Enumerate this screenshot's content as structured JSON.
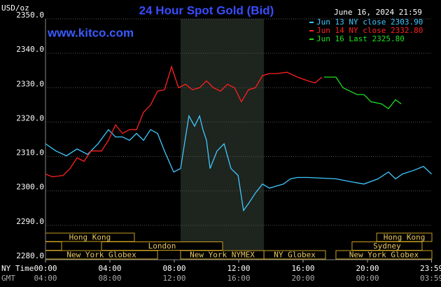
{
  "chart_data": {
    "type": "line",
    "title": "24 Hour Spot Gold (Bid)",
    "unit_label": "USD/oz",
    "site": "www.kitco.com",
    "timestamp": "June 16, 2024 21:59",
    "x_row_labels": [
      "NY Time",
      "GMT"
    ],
    "xlim": [
      0,
      24
    ],
    "xticks": [
      {
        "value": 0,
        "label": "00:00"
      },
      {
        "value": 4,
        "label": "04:00"
      },
      {
        "value": 8,
        "label": "08:00"
      },
      {
        "value": 12,
        "label": "12:00"
      },
      {
        "value": 16,
        "label": "16:00"
      },
      {
        "value": 20,
        "label": "20:00"
      },
      {
        "value": 23.98,
        "label": "23:59"
      }
    ],
    "gmt_tick_labels": [
      "04:00",
      "08:00",
      "12:00",
      "16:00",
      "20:00",
      "00:00",
      "03:59"
    ],
    "ylim": [
      2280,
      2350
    ],
    "yticks": [
      {
        "value": 2280,
        "label": "2280.0"
      },
      {
        "value": 2290,
        "label": "2290.0"
      },
      {
        "value": 2300,
        "label": "2300.0"
      },
      {
        "value": 2310,
        "label": "2310.0"
      },
      {
        "value": 2320,
        "label": "2320.0"
      },
      {
        "value": 2330,
        "label": "2330.0"
      },
      {
        "value": 2340,
        "label": "2340.0"
      },
      {
        "value": 2350,
        "label": "2350.0"
      }
    ],
    "grid": true,
    "series": [
      {
        "name": "Jun 13 NY close 2303.90",
        "color": "#40c8ff",
        "x": [
          0,
          0.65,
          1.3,
          1.96,
          2.61,
          3.26,
          3.91,
          4.35,
          4.78,
          5.22,
          5.65,
          6.09,
          6.52,
          6.96,
          7.39,
          7.96,
          8.39,
          8.7,
          8.91,
          9.26,
          9.57,
          9.78,
          10,
          10.22,
          10.65,
          11.09,
          11.52,
          11.96,
          12.3,
          12.61,
          13.04,
          13.48,
          13.91,
          14.35,
          14.78,
          15.22,
          15.65,
          16.3,
          17.17,
          18.04,
          18.91,
          19.78,
          20.65,
          21.3,
          21.74,
          22.17,
          22.83,
          23.48,
          23.98
        ],
        "values": [
          2313.7,
          2311.6,
          2310.2,
          2312.2,
          2310.6,
          2313.7,
          2317.8,
          2315.7,
          2315.7,
          2314.7,
          2316.7,
          2314.7,
          2317.8,
          2316.7,
          2311.6,
          2305.5,
          2306.5,
          2315.7,
          2321.8,
          2318.8,
          2321.8,
          2317.8,
          2314.7,
          2306.5,
          2311.6,
          2313.7,
          2306.5,
          2304.5,
          2294.3,
          2296.3,
          2299.4,
          2302,
          2300.8,
          2301.4,
          2302,
          2303.5,
          2303.9,
          2303.9,
          2303.7,
          2303.5,
          2302.7,
          2302,
          2303.5,
          2305.5,
          2303.5,
          2304.9,
          2305.9,
          2307.1,
          2304.9
        ]
      },
      {
        "name": "Jun 14 NY close 2332.80",
        "color": "#ff2020",
        "x": [
          0,
          0.43,
          1.09,
          1.52,
          1.96,
          2.39,
          2.83,
          3.48,
          3.91,
          4.35,
          4.78,
          5.22,
          5.65,
          6.09,
          6.52,
          6.96,
          7.39,
          7.83,
          8.26,
          8.7,
          9.13,
          9.57,
          10,
          10.43,
          10.87,
          11.3,
          11.74,
          12.17,
          12.61,
          13.04,
          13.48,
          13.91,
          14.35,
          15,
          15.65,
          16.3,
          16.74,
          17.17
        ],
        "values": [
          2304.9,
          2304.1,
          2304.5,
          2306.5,
          2309.6,
          2308.6,
          2311.6,
          2311.6,
          2314.7,
          2319.2,
          2316.7,
          2317.8,
          2317.8,
          2322.9,
          2324.9,
          2329,
          2329.4,
          2336.1,
          2330,
          2331,
          2329.4,
          2330,
          2332,
          2330,
          2329,
          2331,
          2330,
          2325.9,
          2329.4,
          2330,
          2333.5,
          2334.1,
          2334.1,
          2334.5,
          2333.1,
          2332,
          2331.4,
          2333.1
        ]
      },
      {
        "name": "Jun 16 Last 2325.80",
        "color": "#20e020",
        "x": [
          17.3,
          18.04,
          18.48,
          18.91,
          19.35,
          19.78,
          20.22,
          20.87,
          21.3,
          21.74,
          22.09
        ],
        "values": [
          2333.1,
          2333.1,
          2330,
          2329,
          2328,
          2328,
          2325.9,
          2325.3,
          2323.9,
          2326.5,
          2325.3
        ]
      }
    ],
    "sessions": [
      {
        "label": "Hong Kong",
        "row": 0,
        "start": 0,
        "end": 5.52
      },
      {
        "label": "Hong Kong",
        "row": 0,
        "start": 20.57,
        "end": 24
      },
      {
        "label": null,
        "row": 1,
        "start": 0,
        "end": 1
      },
      {
        "label": "London",
        "row": 1,
        "start": 3.48,
        "end": 11
      },
      {
        "label": "Sydney",
        "row": 1,
        "start": 19.04,
        "end": 23.39
      },
      {
        "label": "New York Globex",
        "row": 2,
        "start": 0,
        "end": 6.96
      },
      {
        "label": "New York NYMEX",
        "row": 2,
        "start": 8.39,
        "end": 13.57,
        "shaded": true
      },
      {
        "label": "NY Globex",
        "row": 2,
        "start": 13.57,
        "end": 17.39
      },
      {
        "label": "New York Globex",
        "row": 2,
        "start": 18.04,
        "end": 24
      }
    ]
  }
}
